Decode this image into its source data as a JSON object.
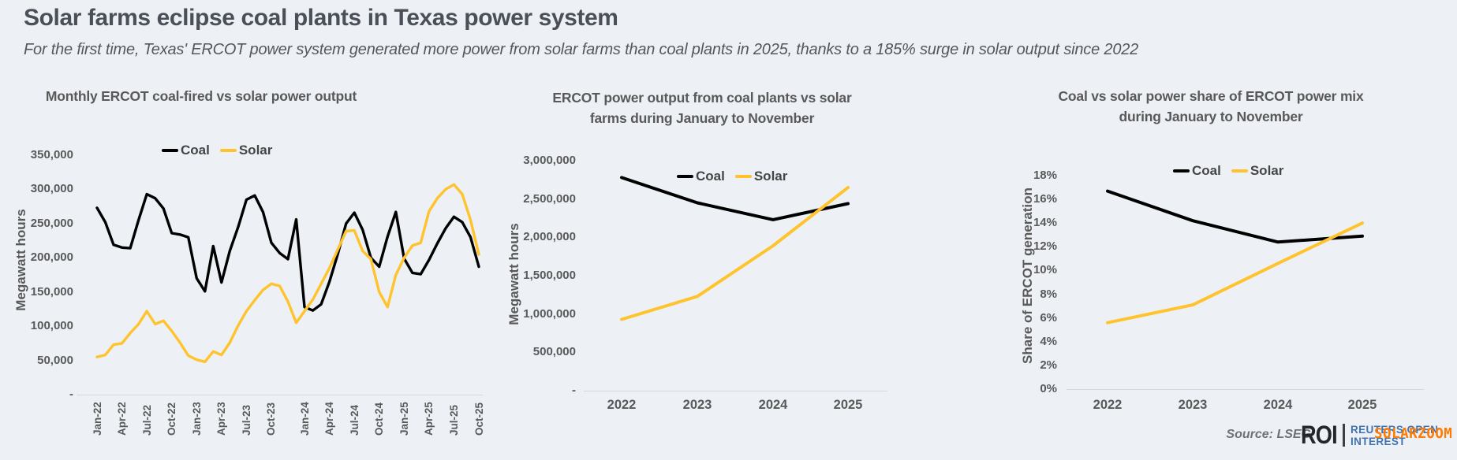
{
  "page": {
    "title": "Solar farms eclipse coal plants in Texas power system",
    "subtitle": "For the first time, Texas' ERCOT power system generated more power from solar farms than coal plants in 2025, thanks to a 185% surge in solar output since 2022"
  },
  "colors": {
    "coal": "#000000",
    "solar": "#fec32d",
    "text_gray": "#595959",
    "axis_line": "#d5d8dc",
    "background": "#edf1f6"
  },
  "footer": {
    "source": "Source:  LSEG",
    "logo": {
      "roi": "ROI",
      "line1": "REUTERS OPEN",
      "line2": "INTEREST"
    },
    "watermark": "SOLARZOOM"
  },
  "chart_data": [
    {
      "type": "line",
      "title": "Monthly ERCOT coal-fired vs solar power output",
      "title_lines": [
        "Monthly ERCOT coal-fired vs solar power output"
      ],
      "ylabel": "Megawatt hours",
      "xlabel": "",
      "ylim": [
        0,
        350000
      ],
      "grid": false,
      "legend_position": "top-center",
      "categories": [
        "Jan-22",
        "Feb-22",
        "Mar-22",
        "Apr-22",
        "May-22",
        "Jun-22",
        "Jul-22",
        "Aug-22",
        "Sep-22",
        "Oct-22",
        "Nov-22",
        "Dec-22",
        "Jan-23",
        "Feb-23",
        "Mar-23",
        "Apr-23",
        "May-23",
        "Jun-23",
        "Jul-23",
        "Aug-23",
        "Sep-23",
        "Oct-23",
        "Nov-23",
        "Dec-23",
        "Jan-24",
        "Feb-24",
        "Mar-24",
        "Apr-24",
        "May-24",
        "Jun-24",
        "Jul-24",
        "Aug-24",
        "Sep-24",
        "Oct-24",
        "Nov-24",
        "Dec-24",
        "Jan-25",
        "Feb-25",
        "Mar-25",
        "Apr-25",
        "May-25",
        "Jun-25",
        "Jul-25",
        "Aug-25",
        "Sep-25",
        "Oct-25",
        "Nov-25"
      ],
      "x_tick_labels": [
        "Jan-22",
        "Apr-22",
        "Jul-22",
        "Oct-22",
        "Jan-23",
        "Apr-23",
        "Jul-23",
        "Oct-23",
        "Jan-24",
        "Apr-24",
        "Jul-24",
        "Oct-24",
        "Jan-25",
        "Apr-25",
        "Jul-25",
        "Oct-25"
      ],
      "y_ticks": [
        {
          "label": "350,000",
          "value": 350000
        },
        {
          "label": "300,000",
          "value": 300000
        },
        {
          "label": "250,000",
          "value": 250000
        },
        {
          "label": "200,000",
          "value": 200000
        },
        {
          "label": "150,000",
          "value": 150000
        },
        {
          "label": "100,000",
          "value": 100000
        },
        {
          "label": "50,000",
          "value": 50000
        },
        {
          "label": "-",
          "value": 0
        }
      ],
      "series": [
        {
          "name": "Coal",
          "color": "#000000",
          "values": [
            273000,
            252000,
            219000,
            215000,
            214000,
            255000,
            293000,
            287000,
            272000,
            236000,
            234000,
            230000,
            170000,
            151000,
            217000,
            164000,
            210000,
            245000,
            285000,
            291000,
            267000,
            222000,
            207000,
            198000,
            256000,
            128000,
            123000,
            132000,
            165000,
            205000,
            250000,
            266000,
            241000,
            200000,
            187000,
            231000,
            267000,
            199000,
            178000,
            176000,
            197000,
            221000,
            243000,
            260000,
            252000,
            230000,
            187000
          ]
        },
        {
          "name": "Solar",
          "color": "#fec32d",
          "values": [
            55000,
            58000,
            73000,
            75000,
            90000,
            103000,
            122000,
            103000,
            108000,
            93000,
            76000,
            57000,
            51000,
            48000,
            63000,
            58000,
            76000,
            101000,
            122000,
            138000,
            153000,
            162000,
            159000,
            136000,
            105000,
            122000,
            139000,
            162000,
            185000,
            212000,
            239000,
            240000,
            210000,
            198000,
            150000,
            128000,
            175000,
            200000,
            218000,
            222000,
            268000,
            287000,
            300000,
            307000,
            293000,
            255000,
            205000
          ]
        }
      ]
    },
    {
      "type": "line",
      "title": "ERCOT power output from coal plants vs solar farms during January to November",
      "title_lines": [
        "ERCOT power output from coal plants vs solar",
        "farms during January to November"
      ],
      "ylabel": "Megawatt hours",
      "xlabel": "",
      "ylim": [
        0,
        3000000
      ],
      "grid": false,
      "legend_position": "top-center",
      "categories": [
        "2022",
        "2023",
        "2024",
        "2025"
      ],
      "x_tick_labels": [
        "2022",
        "2023",
        "2024",
        "2025"
      ],
      "y_ticks": [
        {
          "label": "3,000,000",
          "value": 3000000
        },
        {
          "label": "2,500,000",
          "value": 2500000
        },
        {
          "label": "2,000,000",
          "value": 2000000
        },
        {
          "label": "1,500,000",
          "value": 1500000
        },
        {
          "label": "1,000,000",
          "value": 1000000
        },
        {
          "label": "500,000",
          "value": 500000
        },
        {
          "label": "-",
          "value": 0
        }
      ],
      "series": [
        {
          "name": "Coal",
          "color": "#000000",
          "values": [
            2780000,
            2450000,
            2230000,
            2440000
          ]
        },
        {
          "name": "Solar",
          "color": "#fec32d",
          "values": [
            930000,
            1230000,
            1890000,
            2650000
          ]
        }
      ]
    },
    {
      "type": "line",
      "title": "Coal vs solar power share of ERCOT power mix during January to November",
      "title_lines": [
        "Coal vs solar power share of ERCOT power mix",
        "during January to November"
      ],
      "ylabel": "Share of ERCOT generation",
      "xlabel": "",
      "ylim": [
        0,
        18
      ],
      "grid": false,
      "legend_position": "top-center",
      "categories": [
        "2022",
        "2023",
        "2024",
        "2025"
      ],
      "x_tick_labels": [
        "2022",
        "2023",
        "2024",
        "2025"
      ],
      "y_ticks": [
        {
          "label": "18%",
          "value": 18
        },
        {
          "label": "16%",
          "value": 16
        },
        {
          "label": "14%",
          "value": 14
        },
        {
          "label": "12%",
          "value": 12
        },
        {
          "label": "10%",
          "value": 10
        },
        {
          "label": "8%",
          "value": 8
        },
        {
          "label": "6%",
          "value": 6
        },
        {
          "label": "4%",
          "value": 4
        },
        {
          "label": "2%",
          "value": 2
        },
        {
          "label": "0%",
          "value": 0
        }
      ],
      "series": [
        {
          "name": "Coal",
          "color": "#000000",
          "values": [
            16.7,
            14.2,
            12.4,
            12.9
          ]
        },
        {
          "name": "Solar",
          "color": "#fec32d",
          "values": [
            5.6,
            7.1,
            10.6,
            14.0
          ]
        }
      ]
    }
  ]
}
